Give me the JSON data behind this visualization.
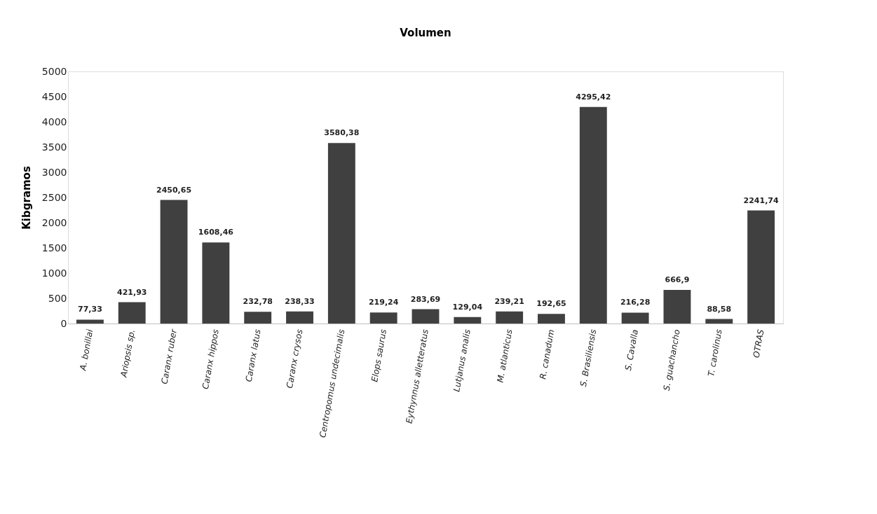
{
  "chart_data": {
    "type": "bar",
    "title": "Volumen",
    "ylabel": "Kibgramos",
    "categories": [
      "A. bonillai",
      "Ariopsis sp.",
      "Caranx ruber",
      "Caranx hippos",
      "Caranx latus",
      "Caranx crysos",
      "Centropomus undecimalis",
      "Elops saurus",
      "Eythynnus alletteratus",
      "Lutjanus analis",
      "M. atlanticus",
      "R. canadum",
      "S. Brasiliensis",
      "S. Cavalla",
      "S. guachancho",
      "T. carolinus",
      "OTRAS"
    ],
    "values": [
      77.33,
      421.93,
      2450.65,
      1608.46,
      232.78,
      238.33,
      3580.38,
      219.24,
      283.69,
      129.04,
      239.21,
      192.65,
      4295.42,
      216.28,
      666.9,
      88.58,
      2241.74
    ],
    "value_labels": [
      "77,33",
      "421,93",
      "2450,65",
      "1608,46",
      "232,78",
      "238,33",
      "3580,38",
      "219,24",
      "283,69",
      "129,04",
      "239,21",
      "192,65",
      "4295,42",
      "216,28",
      "666,9",
      "88,58",
      "2241,74"
    ],
    "color": "#404040",
    "ylim": [
      0,
      5000
    ],
    "yticks": [
      0,
      500,
      1000,
      1500,
      2000,
      2500,
      3000,
      3500,
      4000,
      4500,
      5000
    ],
    "grid": false
  }
}
